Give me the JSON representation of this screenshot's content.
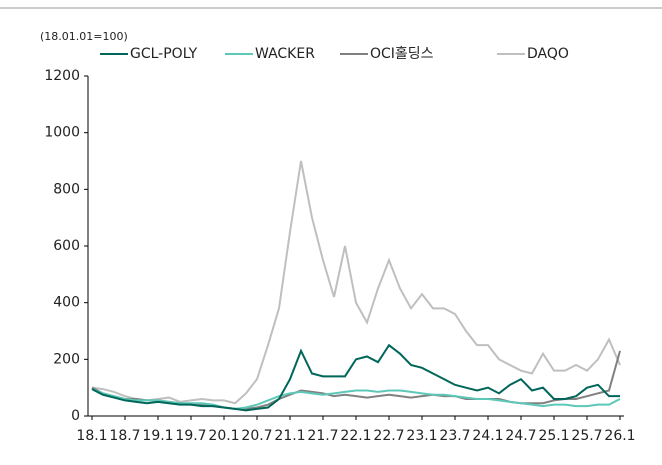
{
  "chart_data": {
    "type": "line",
    "subtitle": "(18.01.01=100)",
    "categories": [
      "18.1",
      null,
      null,
      "18.7",
      null,
      null,
      "19.1",
      null,
      null,
      "19.7",
      null,
      null,
      "20.1",
      null,
      null,
      "20.7",
      null,
      null,
      "21.1",
      null,
      null,
      "21.7",
      null,
      null,
      "22.1",
      null,
      null,
      "22.7",
      null,
      null,
      "23.1",
      null,
      null,
      "23.7",
      null,
      null,
      "24.1",
      null,
      null,
      "24.7",
      null,
      null,
      "25.1",
      null,
      null,
      "25.7",
      null,
      null,
      "26.1"
    ],
    "series": [
      {
        "name": "GCL-POLY",
        "color": "#00665a",
        "values": [
          95,
          75,
          65,
          55,
          50,
          45,
          50,
          45,
          40,
          40,
          35,
          35,
          30,
          25,
          20,
          25,
          30,
          60,
          130,
          230,
          150,
          140,
          140,
          140,
          200,
          210,
          190,
          250,
          220,
          180,
          170,
          150,
          130,
          110,
          100,
          90,
          100,
          80,
          110,
          130,
          90,
          100,
          60,
          60,
          70,
          100,
          110,
          70,
          70
        ]
      },
      {
        "name": "WACKER",
        "color": "#5cc8b8",
        "values": [
          95,
          80,
          70,
          60,
          55,
          55,
          55,
          50,
          45,
          45,
          45,
          40,
          30,
          25,
          30,
          40,
          55,
          70,
          80,
          85,
          80,
          75,
          80,
          85,
          90,
          90,
          85,
          90,
          90,
          85,
          80,
          75,
          75,
          70,
          65,
          60,
          60,
          55,
          50,
          45,
          40,
          35,
          40,
          40,
          35,
          35,
          40,
          40,
          60
        ]
      },
      {
        "name": "OCI홀딩스",
        "color": "#808080",
        "values": [
          100,
          80,
          70,
          60,
          60,
          55,
          55,
          50,
          45,
          40,
          40,
          35,
          30,
          25,
          25,
          30,
          40,
          60,
          75,
          90,
          85,
          80,
          70,
          75,
          70,
          65,
          70,
          75,
          70,
          65,
          70,
          75,
          70,
          70,
          60,
          60,
          60,
          60,
          50,
          45,
          45,
          45,
          55,
          60,
          60,
          70,
          80,
          90,
          230
        ]
      },
      {
        "name": "DAQO",
        "color": "#bfbfbf",
        "values": [
          100,
          95,
          85,
          70,
          60,
          55,
          60,
          65,
          50,
          55,
          60,
          55,
          55,
          45,
          80,
          130,
          250,
          380,
          650,
          900,
          700,
          550,
          420,
          600,
          400,
          330,
          450,
          550,
          450,
          380,
          430,
          380,
          380,
          360,
          300,
          250,
          250,
          200,
          180,
          160,
          150,
          220,
          160,
          160,
          180,
          160,
          200,
          270,
          180
        ]
      }
    ],
    "ylim": [
      0,
      1200
    ],
    "yticks": [
      0,
      200,
      400,
      600,
      800,
      1000,
      1200
    ]
  }
}
